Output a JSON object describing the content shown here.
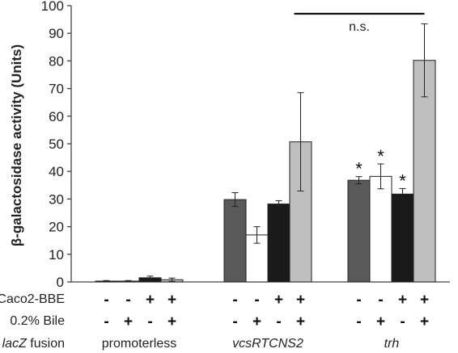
{
  "chart_data": {
    "type": "bar",
    "ylabel": "β-galactosidase activity (Units)",
    "ylim": [
      0,
      100
    ],
    "yticks": [
      0,
      10,
      20,
      30,
      40,
      50,
      60,
      70,
      80,
      90,
      100
    ],
    "grid": false,
    "row_labels": {
      "caco2": "Caco2-BBE",
      "bile": "0.2% Bile",
      "fusion_prefix": "lacZ",
      "fusion_suffix": " fusion"
    },
    "conditions": [
      {
        "caco2": "-",
        "bile": "-",
        "color": "#595959"
      },
      {
        "caco2": "-",
        "bile": "+",
        "color": "#ffffff"
      },
      {
        "caco2": "+",
        "bile": "-",
        "color": "#1a1a1a"
      },
      {
        "caco2": "+",
        "bile": "+",
        "color": "#bfbfbf"
      }
    ],
    "groups": [
      {
        "label": "promoterless",
        "italic": false,
        "values": [
          0.3,
          0.3,
          1.5,
          0.8
        ],
        "errors": [
          0.2,
          0.2,
          0.6,
          0.6
        ],
        "significant": [
          false,
          false,
          false,
          false
        ]
      },
      {
        "label": "vcsRTCNS2",
        "italic": true,
        "values": [
          29.8,
          17.0,
          28.2,
          50.7
        ],
        "errors": [
          2.5,
          3.0,
          1.2,
          17.8
        ],
        "significant": [
          false,
          false,
          false,
          false
        ]
      },
      {
        "label": "trh",
        "italic": true,
        "values": [
          36.8,
          38.2,
          31.8,
          80.2
        ],
        "errors": [
          1.3,
          4.5,
          2.0,
          13.2
        ],
        "significant": [
          true,
          true,
          true,
          false
        ]
      }
    ],
    "star_symbol": "*",
    "comparison": {
      "label": "n.s.",
      "from_group": 1,
      "to_group": 2
    }
  }
}
